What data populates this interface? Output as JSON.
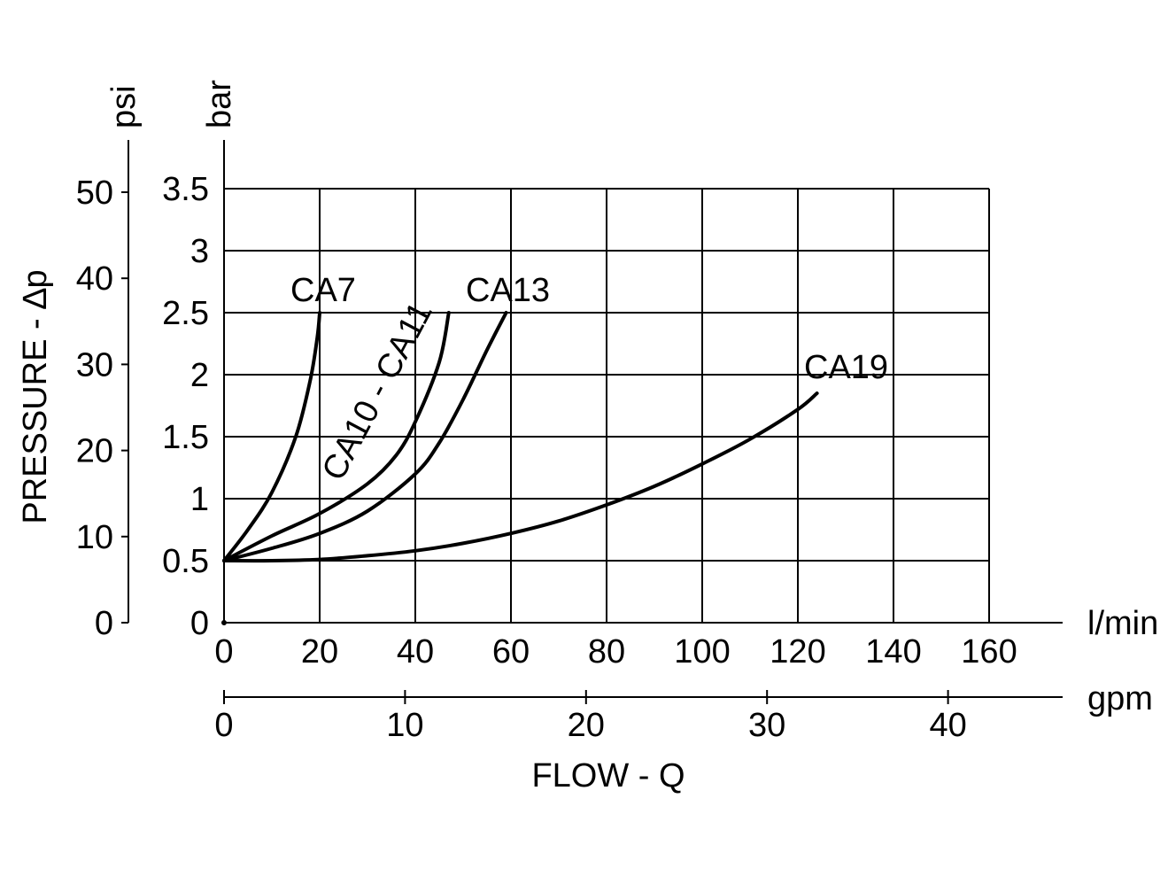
{
  "chart_data": {
    "type": "line",
    "ylabel": "PRESSURE - ∆p",
    "xlabel": "FLOW - Q",
    "x_primary": {
      "unit": "l/min",
      "range": [
        0,
        160
      ],
      "ticks": [
        "0",
        "20",
        "40",
        "60",
        "80",
        "100",
        "120",
        "140",
        "160"
      ]
    },
    "x_secondary": {
      "unit": "gpm",
      "ticks": [
        "0",
        "10",
        "20",
        "30",
        "40"
      ]
    },
    "y_primary": {
      "unit": "bar",
      "range": [
        0,
        3.5
      ],
      "ticks": [
        "0",
        "0.5",
        "1",
        "1.5",
        "2",
        "2.5",
        "3",
        "3.5"
      ]
    },
    "y_secondary": {
      "unit": "psi",
      "ticks": [
        "0",
        "10",
        "20",
        "30",
        "40",
        "50"
      ]
    },
    "grid": true,
    "series": [
      {
        "name": "CA7",
        "x": [
          0,
          5,
          10,
          15,
          18,
          19.5,
          20
        ],
        "y": [
          0.5,
          0.75,
          1.05,
          1.5,
          1.95,
          2.3,
          2.5
        ]
      },
      {
        "name": "CA10 - CA11",
        "x": [
          0,
          10,
          20,
          30,
          36,
          40,
          45,
          47
        ],
        "y": [
          0.5,
          0.7,
          0.88,
          1.12,
          1.35,
          1.62,
          2.1,
          2.5
        ]
      },
      {
        "name": "CA13",
        "x": [
          0,
          10,
          20,
          30,
          40,
          45,
          50,
          55,
          59
        ],
        "y": [
          0.5,
          0.6,
          0.72,
          0.9,
          1.2,
          1.45,
          1.8,
          2.2,
          2.5
        ]
      },
      {
        "name": "CA19",
        "x": [
          0,
          10,
          20,
          30,
          40,
          50,
          60,
          70,
          80,
          90,
          100,
          110,
          120,
          124
        ],
        "y": [
          0.5,
          0.5,
          0.51,
          0.54,
          0.58,
          0.64,
          0.72,
          0.82,
          0.95,
          1.1,
          1.28,
          1.48,
          1.72,
          1.85
        ]
      }
    ]
  }
}
